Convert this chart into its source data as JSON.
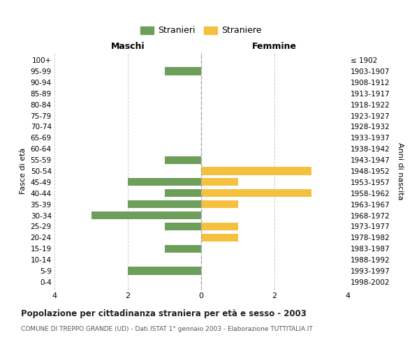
{
  "age_groups_display": [
    "0-4",
    "5-9",
    "10-14",
    "15-19",
    "20-24",
    "25-29",
    "30-34",
    "35-39",
    "40-44",
    "45-49",
    "50-54",
    "55-59",
    "60-64",
    "65-69",
    "70-74",
    "75-79",
    "80-84",
    "85-89",
    "90-94",
    "95-99",
    "100+"
  ],
  "birth_years_display": [
    "1998-2002",
    "1993-1997",
    "1988-1992",
    "1983-1987",
    "1978-1982",
    "1973-1977",
    "1968-1972",
    "1963-1967",
    "1958-1962",
    "1953-1957",
    "1948-1952",
    "1943-1947",
    "1938-1942",
    "1933-1937",
    "1928-1932",
    "1923-1927",
    "1918-1922",
    "1913-1917",
    "1908-1912",
    "1903-1907",
    "≤ 1902"
  ],
  "maschi_display": [
    0,
    2,
    0,
    1,
    0,
    1,
    3,
    2,
    1,
    2,
    0,
    1,
    0,
    0,
    0,
    0,
    0,
    0,
    0,
    1,
    0
  ],
  "femmine_display": [
    0,
    0,
    0,
    0,
    1,
    1,
    0,
    1,
    3,
    1,
    3,
    0,
    0,
    0,
    0,
    0,
    0,
    0,
    0,
    0,
    0
  ],
  "male_color": "#6d9e5a",
  "female_color": "#f5c040",
  "background_color": "#ffffff",
  "grid_color": "#cccccc",
  "title": "Popolazione per cittadinanza straniera per età e sesso - 2003",
  "subtitle": "COMUNE DI TREPPO GRANDE (UD) - Dati ISTAT 1° gennaio 2003 - Elaborazione TUTTITALIA.IT",
  "legend_male": "Stranieri",
  "legend_female": "Straniere",
  "xlabel_left": "Maschi",
  "xlabel_right": "Femmine",
  "ylabel": "Fasce di età",
  "ylabel_right": "Anni di nascita",
  "xlim": 4
}
